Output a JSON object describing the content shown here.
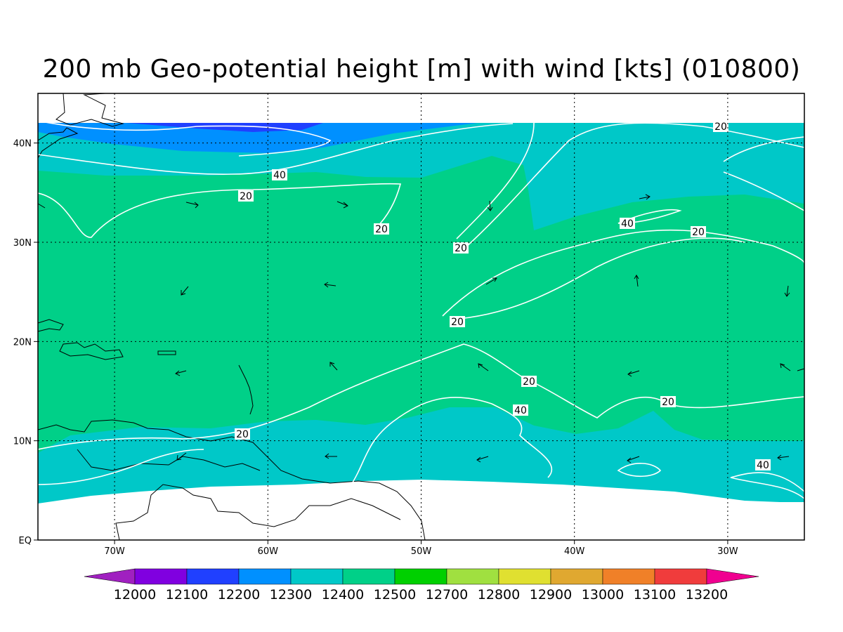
{
  "title": "200 mb Geo-potential height [m] with wind [kts] (010800)",
  "map": {
    "lat_labels": [
      "40N",
      "30N",
      "20N",
      "10N",
      "EQ"
    ],
    "lon_labels": [
      "70W",
      "60W",
      "50W",
      "40W",
      "30W"
    ],
    "lat_values": [
      40,
      30,
      20,
      10,
      0
    ],
    "lon_values": [
      -70,
      -60,
      -50,
      -40,
      -30
    ],
    "extent": {
      "lon_min": -75,
      "lon_max": -25,
      "lat_min": 0,
      "lat_max": 45
    },
    "wind_contour_labels": [
      "20",
      "40",
      "20",
      "20",
      "20",
      "40",
      "20",
      "20",
      "20",
      "40",
      "20",
      "20",
      "40"
    ]
  },
  "colorbar": {
    "labels": [
      "12000",
      "12100",
      "12200",
      "12300",
      "12400",
      "12500",
      "12700",
      "12800",
      "12900",
      "13000",
      "13100",
      "13200"
    ],
    "colors": [
      "#a020c0",
      "#8000e0",
      "#2040ff",
      "#0090ff",
      "#00c8c8",
      "#00d088",
      "#00d000",
      "#a0e040",
      "#e0e030",
      "#e0a830",
      "#f08028",
      "#f03c3c",
      "#f00090"
    ]
  }
}
